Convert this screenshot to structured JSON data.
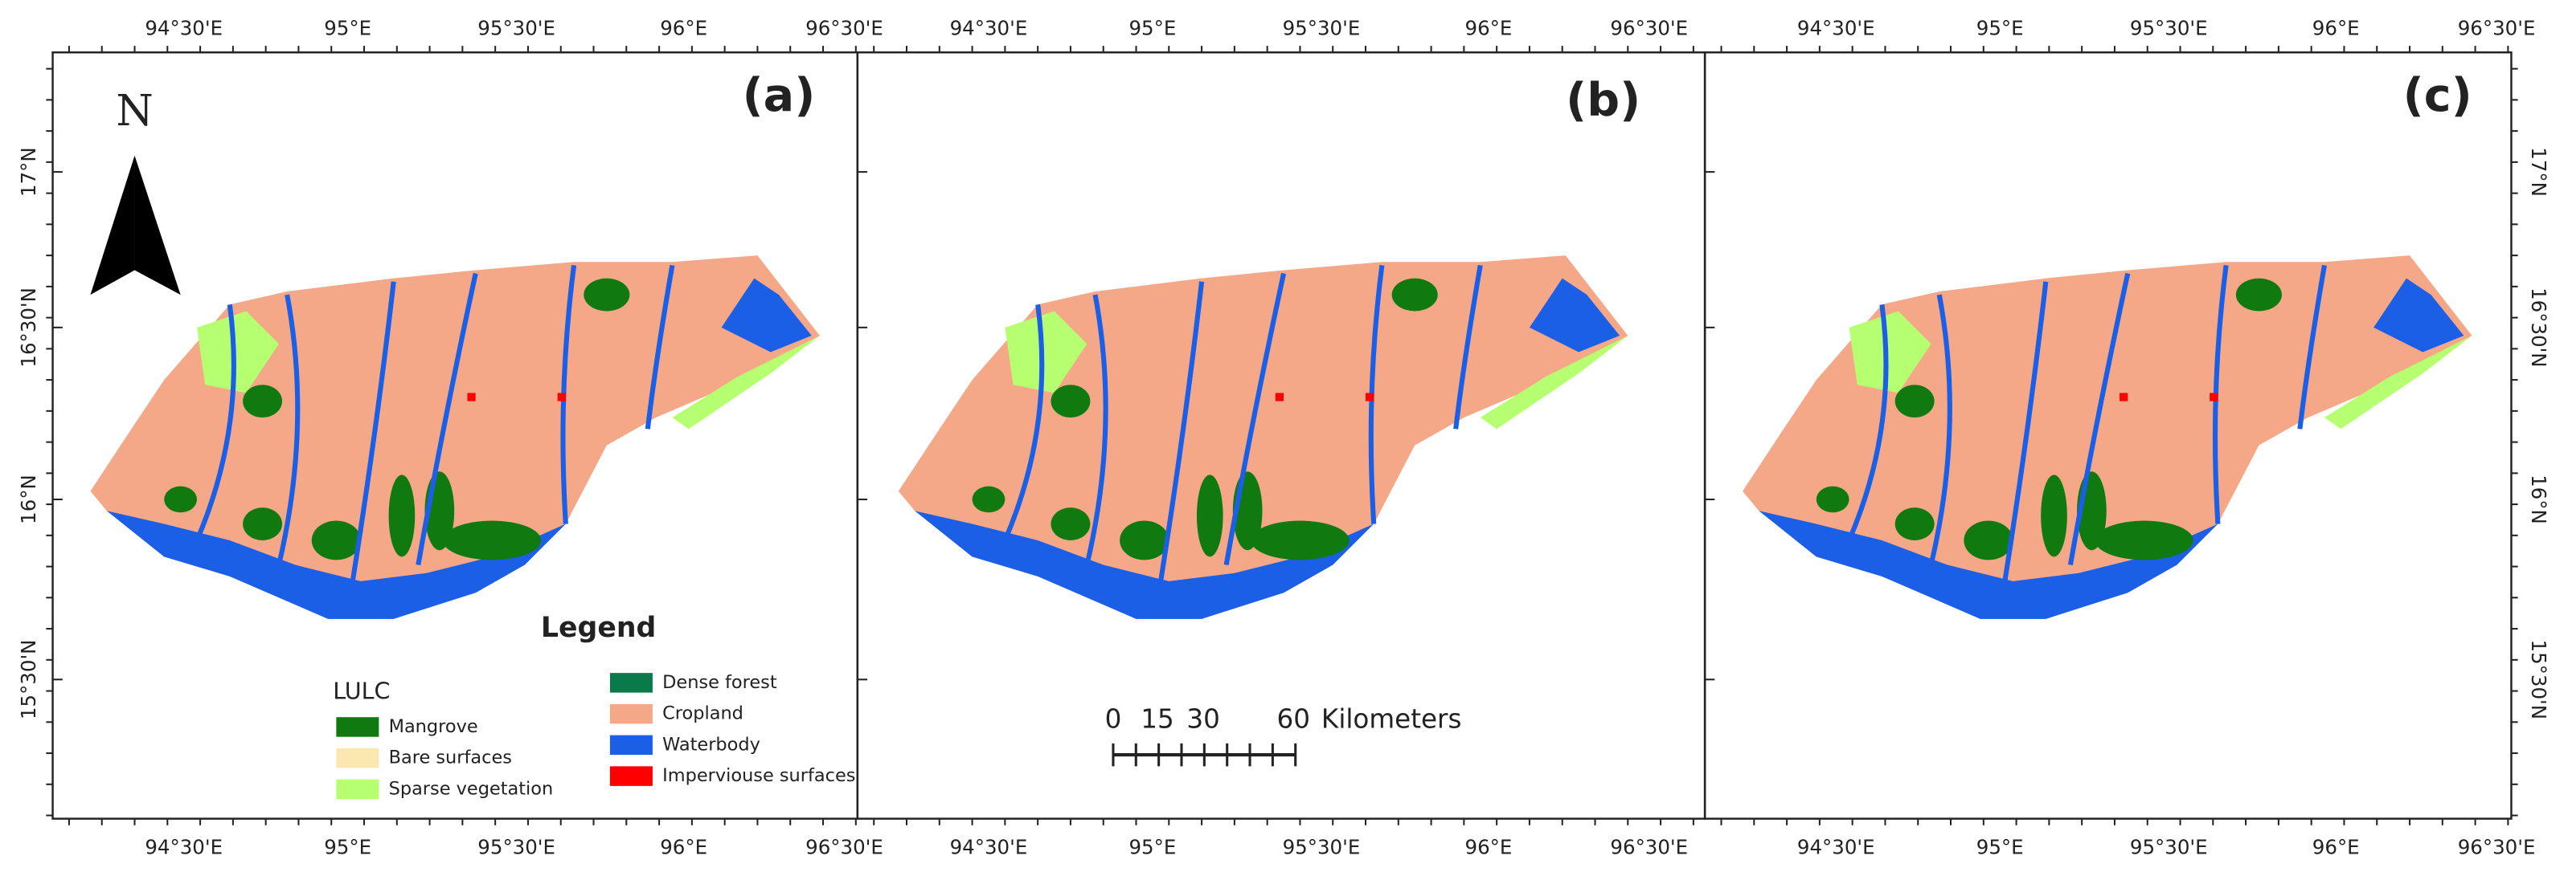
{
  "panels": [
    {
      "label": "(a)"
    },
    {
      "label": "(b)"
    },
    {
      "label": "(c)"
    }
  ],
  "x_ticks": [
    "94°30'E",
    "95°E",
    "95°30'E",
    "96°E",
    "96°30'E"
  ],
  "y_ticks": [
    "17°N",
    "16°30'N",
    "16°N",
    "15°30'N"
  ],
  "north": "N",
  "legend": {
    "title": "Legend",
    "group": "LULC",
    "items": [
      {
        "label": "Mangrove",
        "color": "#107a10"
      },
      {
        "label": "Bare surfaces",
        "color": "#fbe7b0"
      },
      {
        "label": "Sparse vegetation",
        "color": "#b6ff70"
      },
      {
        "label": "Dense forest",
        "color": "#0b7a4a"
      },
      {
        "label": "Cropland",
        "color": "#f5a887"
      },
      {
        "label": "Waterbody",
        "color": "#1a5fe6"
      },
      {
        "label": "Imperviouse surfaces",
        "color": "#ff0000"
      }
    ]
  },
  "scale_bar": {
    "labels": [
      "0",
      "15",
      "30",
      "60"
    ],
    "unit": "Kilometers"
  }
}
